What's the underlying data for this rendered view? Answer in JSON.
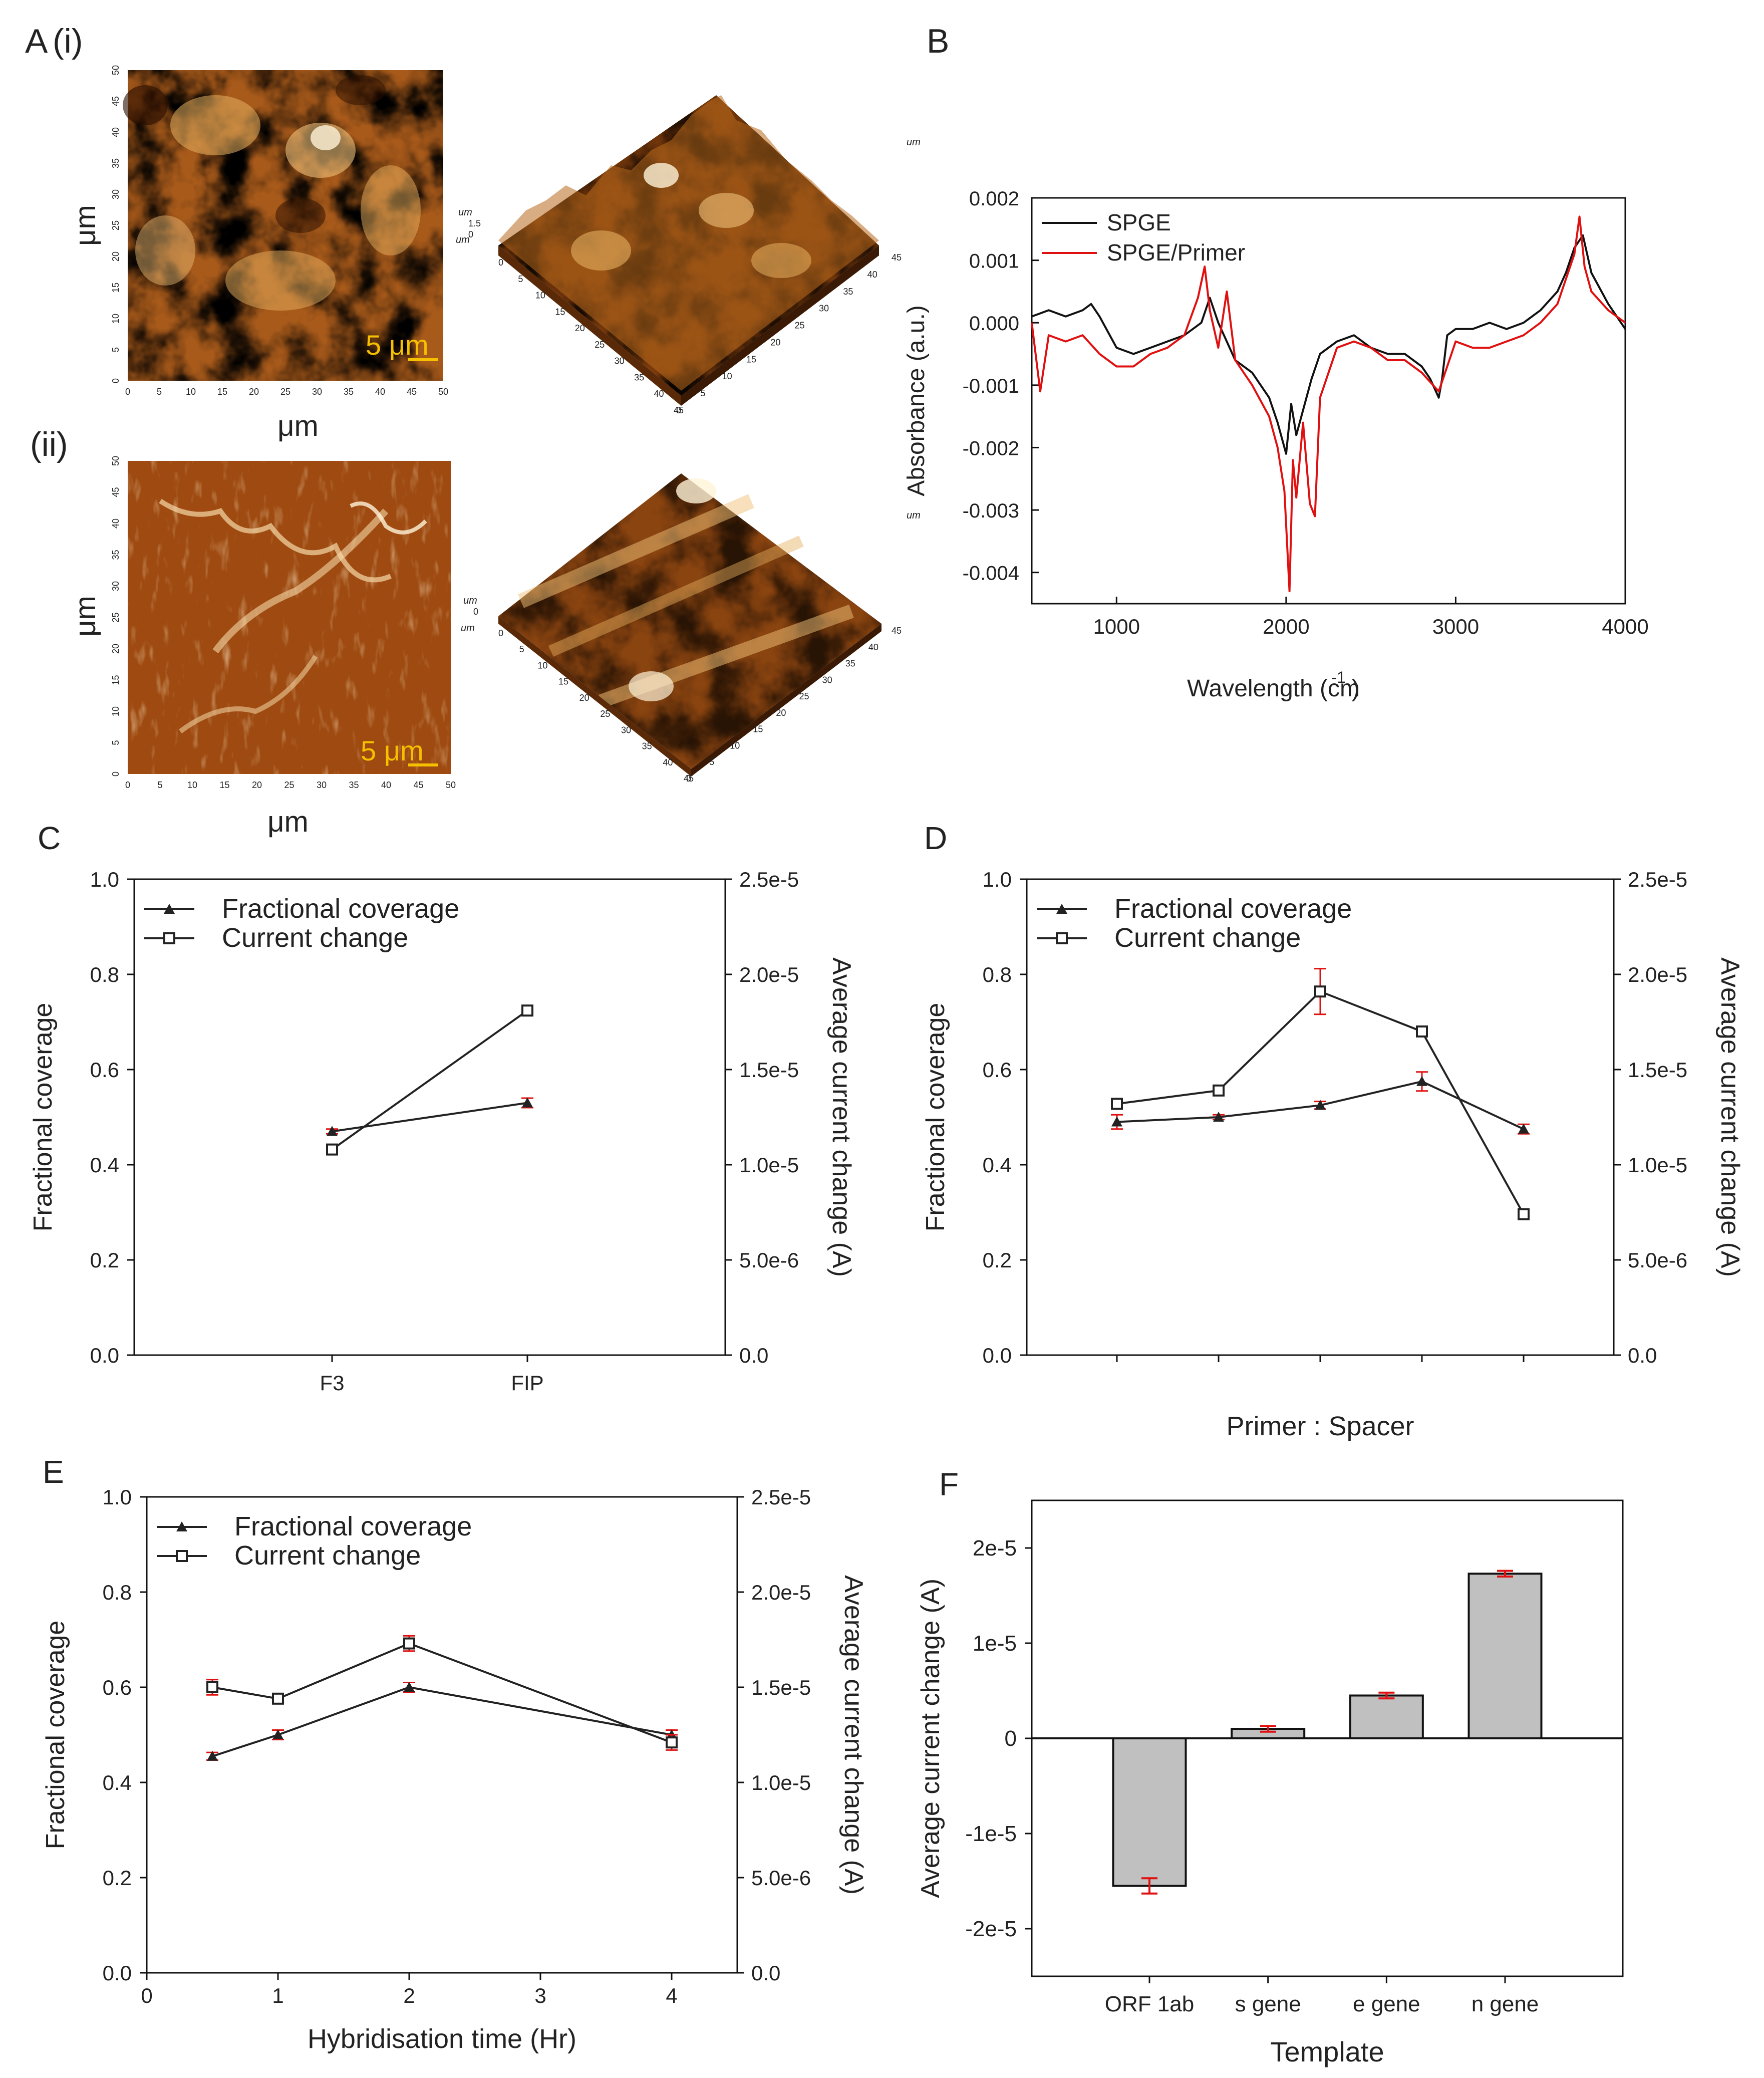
{
  "panels": {
    "A": "A",
    "Ai": "(i)",
    "Aii": "(ii)",
    "B": "B",
    "C": "C",
    "D": "D",
    "E": "E",
    "F": "F"
  },
  "afm": {
    "axis_label": "μm",
    "axis3d_label": "um",
    "ticks": [
      "0",
      "5",
      "10",
      "15",
      "20",
      "25",
      "30",
      "35",
      "40",
      "45",
      "50"
    ],
    "ticks3d": [
      "0",
      "5",
      "10",
      "15",
      "20",
      "25",
      "30",
      "35",
      "40",
      "45"
    ],
    "z_ticks_i": [
      "1.5",
      "0"
    ],
    "z_ticks_ii": [
      "0"
    ],
    "scale_bar": "5 μm",
    "colors": {
      "dark": "#3d1a04",
      "mid": "#a85a1a",
      "light": "#f0c27a",
      "highlight": "#fff4d8"
    }
  },
  "chart_data": [
    {
      "panel": "B",
      "type": "line",
      "xlabel": "Wavelength (cm",
      "xlabel_sup": "-1",
      "xlabel_end": ")",
      "ylabel": "Absorbance (a.u.)",
      "xlim": [
        500,
        4000
      ],
      "ylim": [
        -0.0045,
        0.002
      ],
      "xticks": [
        1000,
        2000,
        3000,
        4000
      ],
      "yticks": [
        0.002,
        0.001,
        0.0,
        -0.001,
        -0.002,
        -0.003,
        -0.004
      ],
      "ytick_labels": [
        "0.002",
        "0.001",
        "0.000",
        "-0.001",
        "-0.002",
        "-0.003",
        "-0.004"
      ],
      "legend": "top-left",
      "series": [
        {
          "name": "SPGE",
          "color": "#111111",
          "x": [
            500,
            600,
            700,
            800,
            850,
            900,
            1000,
            1100,
            1200,
            1300,
            1400,
            1500,
            1550,
            1600,
            1700,
            1800,
            1900,
            1950,
            2000,
            2030,
            2060,
            2100,
            2150,
            2200,
            2300,
            2400,
            2500,
            2600,
            2700,
            2800,
            2850,
            2900,
            2920,
            2950,
            3000,
            3100,
            3200,
            3300,
            3400,
            3500,
            3600,
            3650,
            3700,
            3750,
            3800,
            3900,
            4000
          ],
          "y": [
            0.0001,
            0.0002,
            0.0001,
            0.0002,
            0.0003,
            0.0001,
            -0.0004,
            -0.0005,
            -0.0004,
            -0.0003,
            -0.0002,
            0.0,
            0.0004,
            0.0,
            -0.0006,
            -0.0008,
            -0.0012,
            -0.0016,
            -0.0021,
            -0.0013,
            -0.0018,
            -0.0014,
            -0.0009,
            -0.0005,
            -0.0003,
            -0.0002,
            -0.0004,
            -0.0005,
            -0.0005,
            -0.0007,
            -0.0009,
            -0.0012,
            -0.0009,
            -0.0002,
            -0.0001,
            -0.0001,
            0.0,
            -0.0001,
            0.0,
            0.0002,
            0.0005,
            0.0008,
            0.0012,
            0.0014,
            0.0008,
            0.0003,
            -0.0001
          ]
        },
        {
          "name": "SPGE/Primer",
          "color": "#e01010",
          "x": [
            500,
            550,
            600,
            700,
            800,
            900,
            1000,
            1100,
            1200,
            1300,
            1400,
            1480,
            1520,
            1550,
            1600,
            1650,
            1700,
            1800,
            1900,
            1950,
            1990,
            2020,
            2040,
            2060,
            2100,
            2140,
            2170,
            2200,
            2300,
            2400,
            2500,
            2600,
            2700,
            2800,
            2900,
            3000,
            3100,
            3200,
            3300,
            3400,
            3500,
            3600,
            3650,
            3700,
            3730,
            3760,
            3800,
            3900,
            4000
          ],
          "y": [
            0.0,
            -0.0011,
            -0.0002,
            -0.0003,
            -0.0002,
            -0.0005,
            -0.0007,
            -0.0007,
            -0.0005,
            -0.0004,
            -0.0002,
            0.0004,
            0.0009,
            0.0002,
            -0.0004,
            0.0005,
            -0.0006,
            -0.001,
            -0.0015,
            -0.002,
            -0.0027,
            -0.0043,
            -0.0022,
            -0.0028,
            -0.0016,
            -0.0029,
            -0.0031,
            -0.0012,
            -0.0004,
            -0.0003,
            -0.0004,
            -0.0006,
            -0.0006,
            -0.0008,
            -0.0011,
            -0.0003,
            -0.0004,
            -0.0004,
            -0.0003,
            -0.0002,
            0.0,
            0.0003,
            0.0007,
            0.0011,
            0.0017,
            0.0009,
            0.0005,
            0.0002,
            0.0
          ]
        }
      ]
    },
    {
      "panel": "C",
      "type": "line",
      "categories": [
        "F3",
        "FIP"
      ],
      "ylabel": "Fractional coverage",
      "ylabel2": "Average current change (A)",
      "ylim": [
        0,
        1.0
      ],
      "ylim2": [
        0,
        2.5e-05
      ],
      "yticks": [
        "0.0",
        "0.2",
        "0.4",
        "0.6",
        "0.8",
        "1.0"
      ],
      "yticks2": [
        "0.0",
        "5.0e-6",
        "1.0e-5",
        "1.5e-5",
        "2.0e-5",
        "2.5e-5"
      ],
      "legend": "top-left",
      "series": [
        {
          "name": "Fractional coverage",
          "marker": "triangle",
          "axis": "left",
          "values": [
            0.47,
            0.53
          ],
          "errors": [
            0.005,
            0.01
          ]
        },
        {
          "name": "Current change",
          "marker": "square",
          "axis": "right",
          "values": [
            1.08e-05,
            1.81e-05
          ],
          "errors": [
            1e-07,
            1e-07
          ]
        }
      ]
    },
    {
      "panel": "D",
      "type": "line",
      "categories": [
        "",
        "",
        "",
        "",
        ""
      ],
      "xlabel": "Primer : Spacer",
      "ylabel": "Fractional coverage",
      "ylabel2": "Average current change (A)",
      "ylim": [
        0,
        1.0
      ],
      "ylim2": [
        0,
        2.5e-05
      ],
      "yticks": [
        "0.0",
        "0.2",
        "0.4",
        "0.6",
        "0.8",
        "1.0"
      ],
      "yticks2": [
        "0.0",
        "5.0e-6",
        "1.0e-5",
        "1.5e-5",
        "2.0e-5",
        "2.5e-5"
      ],
      "legend": "top-left",
      "series": [
        {
          "name": "Fractional coverage",
          "marker": "triangle",
          "axis": "left",
          "values": [
            0.49,
            0.5,
            0.525,
            0.575,
            0.475
          ],
          "errors": [
            0.015,
            0.005,
            0.008,
            0.02,
            0.01
          ]
        },
        {
          "name": "Current change",
          "marker": "square",
          "axis": "right",
          "values": [
            1.32e-05,
            1.39e-05,
            1.91e-05,
            1.7e-05,
            7.4e-06
          ],
          "errors": [
            1e-07,
            1e-07,
            1.2e-06,
            1e-07,
            1e-07
          ]
        }
      ]
    },
    {
      "panel": "E",
      "type": "line",
      "x": [
        0.5,
        1,
        2,
        4
      ],
      "xlim": [
        0,
        4.5
      ],
      "xticks": [
        0,
        1,
        2,
        3,
        4
      ],
      "xlabel": "Hybridisation time (Hr)",
      "ylabel": "Fractional coverage",
      "ylabel2": "Average current change (A)",
      "ylim": [
        0,
        1.0
      ],
      "ylim2": [
        0,
        2.5e-05
      ],
      "yticks": [
        "0.0",
        "0.2",
        "0.4",
        "0.6",
        "0.8",
        "1.0"
      ],
      "yticks2": [
        "0.0",
        "5.0e-6",
        "1.0e-5",
        "1.5e-5",
        "2.0e-5",
        "2.5e-5"
      ],
      "legend": "top-left",
      "series": [
        {
          "name": "Fractional coverage",
          "marker": "triangle",
          "axis": "left",
          "values": [
            0.455,
            0.5,
            0.6,
            0.5
          ],
          "errors": [
            0.008,
            0.01,
            0.01,
            0.01
          ]
        },
        {
          "name": "Current change",
          "marker": "square",
          "axis": "right",
          "values": [
            1.5e-05,
            1.44e-05,
            1.73e-05,
            1.21e-05
          ],
          "errors": [
            4e-07,
            1e-07,
            4e-07,
            4e-07
          ]
        }
      ]
    },
    {
      "panel": "F",
      "type": "bar",
      "categories": [
        "ORF 1ab",
        "s gene",
        "e gene",
        "n gene"
      ],
      "values": [
        -1.55e-05,
        1e-06,
        4.5e-06,
        1.73e-05
      ],
      "errors": [
        8e-07,
        3e-07,
        3e-07,
        3e-07
      ],
      "xlabel": "Template",
      "ylabel": "Average current change (A)",
      "ylim": [
        -2.5e-05,
        2.5e-05
      ],
      "yticks": [
        2e-05,
        1e-05,
        0,
        -1e-05,
        -2e-05
      ],
      "ytick_labels": [
        "2e-5",
        "1e-5",
        "0",
        "-1e-5",
        "-2e-5"
      ],
      "bar_color": "#c0c0c0",
      "error_color": "#e01010"
    }
  ]
}
